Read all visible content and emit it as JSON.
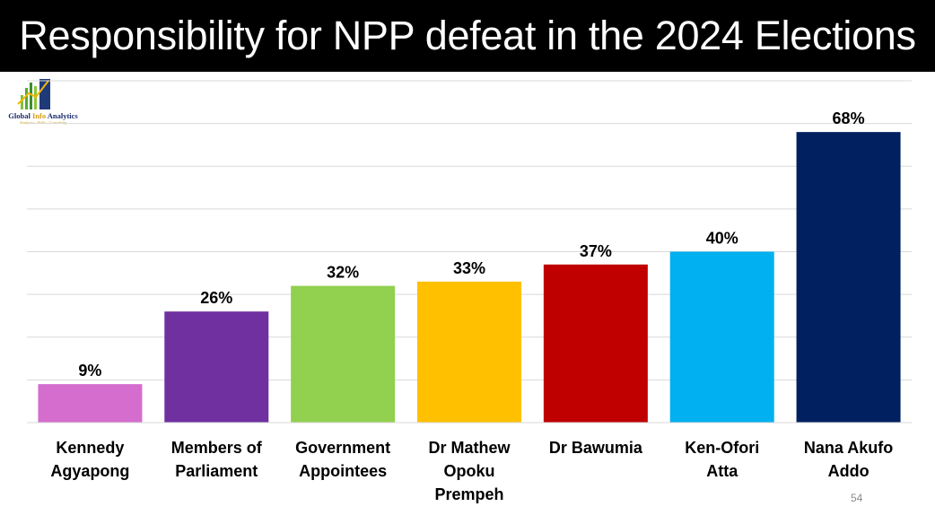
{
  "title": "Responsibility for NPP defeat in the 2024 Elections",
  "logo": {
    "name_part1": "Global ",
    "name_accent": "Info",
    "name_part2": " Analytics",
    "tagline": "Analytics · Polls · Consulting"
  },
  "slide_number": "54",
  "chart_data": {
    "type": "bar",
    "title": "Responsibility for NPP defeat in the 2024 Elections",
    "xlabel": "",
    "ylabel": "",
    "ylim": [
      0,
      80
    ],
    "grid": true,
    "legend": "none",
    "categories": [
      [
        "Kennedy",
        "Agyapong"
      ],
      [
        "Members of",
        "Parliament"
      ],
      [
        "Government",
        "Appointees"
      ],
      [
        "Dr Mathew",
        "Opoku",
        "Prempeh"
      ],
      [
        "Dr Bawumia"
      ],
      [
        "Ken-Ofori",
        "Atta"
      ],
      [
        "Nana Akufo",
        "Addo"
      ]
    ],
    "values": [
      9,
      26,
      32,
      33,
      37,
      40,
      68
    ],
    "value_labels": [
      "9%",
      "26%",
      "32%",
      "33%",
      "37%",
      "40%",
      "68%"
    ],
    "colors": [
      "#d56dcf",
      "#7030a0",
      "#92d050",
      "#ffc000",
      "#c00000",
      "#00b0f0",
      "#002060"
    ]
  }
}
